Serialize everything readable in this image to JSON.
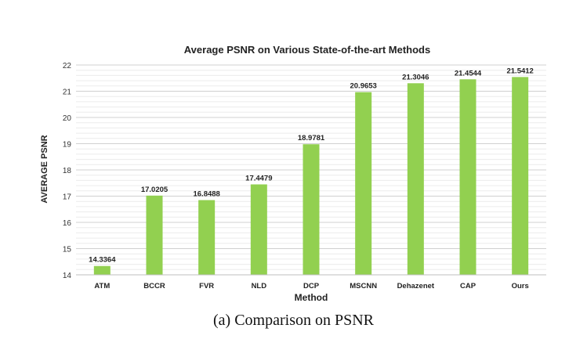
{
  "chart_data": {
    "type": "bar",
    "title": "Average PSNR on Various State-of-the-art Methods",
    "xlabel": "Method",
    "ylabel": "AVERAGE PSNR",
    "categories": [
      "ATM",
      "BCCR",
      "FVR",
      "NLD",
      "DCP",
      "MSCNN",
      "Dehazenet",
      "CAP",
      "Ours"
    ],
    "values": [
      14.3364,
      17.0205,
      16.8488,
      17.4479,
      18.9781,
      20.9653,
      21.3046,
      21.4544,
      21.5412
    ],
    "value_labels": [
      "14.3364",
      "17.0205",
      "16.8488",
      "17.4479",
      "18.9781",
      "20.9653",
      "21.3046",
      "21.4544",
      "21.5412"
    ],
    "yticks": [
      "14",
      "15",
      "16",
      "17",
      "18",
      "19",
      "20",
      "21",
      "22"
    ],
    "ylim": [
      14,
      22
    ],
    "grid": true,
    "bar_color": "#92d050"
  },
  "caption": "(a) Comparison on PSNR"
}
